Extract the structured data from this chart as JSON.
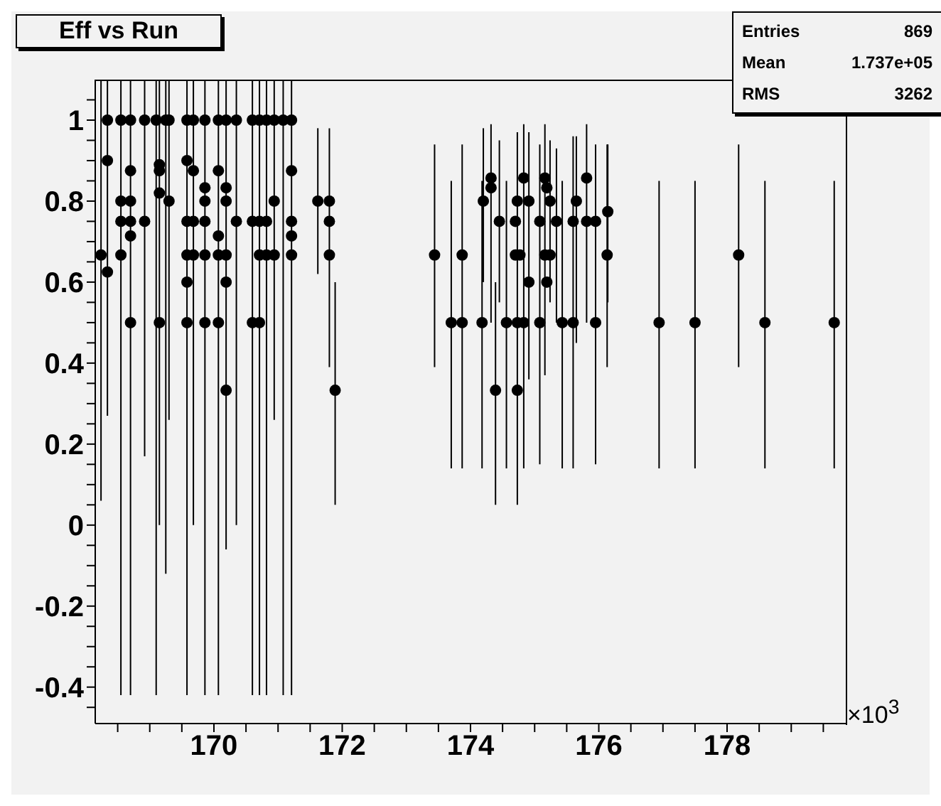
{
  "chart_data": {
    "type": "scatter",
    "title": "Eff vs Run",
    "marker": "circle",
    "legend": false,
    "grid": false,
    "annotations": [
      "Entries",
      "869",
      "Mean",
      "1.737e+05",
      "RMS",
      "3262",
      "×10$^{3}$"
    ],
    "xlim": [
      168.15,
      179.85
    ],
    "xticks": [
      {
        "value": 168.5,
        "label": null
      },
      {
        "value": 169,
        "label": null
      },
      {
        "value": 169.5,
        "label": null
      },
      170,
      {
        "value": 170.5,
        "label": null
      },
      {
        "value": 171,
        "label": null
      },
      {
        "value": 171.5,
        "label": null
      },
      172,
      {
        "value": 172.5,
        "label": null
      },
      {
        "value": 173,
        "label": null
      },
      {
        "value": 173.5,
        "label": null
      },
      174,
      {
        "value": 174.5,
        "label": null
      },
      {
        "value": 175,
        "label": null
      },
      {
        "value": 175.5,
        "label": null
      },
      176,
      {
        "value": 176.5,
        "label": null
      },
      {
        "value": 177,
        "label": null
      },
      {
        "value": 177.5,
        "label": null
      },
      178,
      {
        "value": 178.5,
        "label": null
      },
      {
        "value": 179,
        "label": null
      },
      {
        "value": 179.5,
        "label": null
      }
    ],
    "ylim": [
      -0.49,
      1.1
    ],
    "yticks": [
      {
        "value": -0.45,
        "label": null
      },
      -0.4,
      {
        "value": -0.35,
        "label": null
      },
      {
        "value": -0.3,
        "label": null
      },
      {
        "value": -0.25,
        "label": null
      },
      -0.2,
      {
        "value": -0.15,
        "label": null
      },
      {
        "value": -0.1,
        "label": null
      },
      {
        "value": -0.05,
        "label": null
      },
      0,
      {
        "value": 0.05,
        "label": null
      },
      {
        "value": 0.1,
        "label": null
      },
      {
        "value": 0.15,
        "label": null
      },
      0.2,
      {
        "value": 0.25,
        "label": null
      },
      {
        "value": 0.3,
        "label": null
      },
      {
        "value": 0.35,
        "label": null
      },
      0.4,
      {
        "value": 0.45,
        "label": null
      },
      {
        "value": 0.5,
        "label": null
      },
      {
        "value": 0.55,
        "label": null
      },
      0.6,
      {
        "value": 0.65,
        "label": null
      },
      {
        "value": 0.7,
        "label": null
      },
      {
        "value": 0.75,
        "label": null
      },
      0.8,
      {
        "value": 0.85,
        "label": null
      },
      {
        "value": 0.9,
        "label": null
      },
      {
        "value": 0.95,
        "label": null
      },
      1,
      {
        "value": 1.05,
        "label": null
      }
    ],
    "series": [
      {
        "color": "#000000",
        "x": [
          168.24,
          168.34,
          168.34,
          168.34,
          168.55,
          168.55,
          168.55,
          168.55,
          168.7,
          168.7,
          168.7,
          168.7,
          168.7,
          168.7,
          168.92,
          168.92,
          169.1,
          169.15,
          169.15,
          169.15,
          169.15,
          169.25,
          169.3,
          169.3,
          169.58,
          169.58,
          169.58,
          169.58,
          169.58,
          169.58,
          169.68,
          169.68,
          169.68,
          169.68,
          169.86,
          169.86,
          169.86,
          169.86,
          169.86,
          169.86,
          170.07,
          170.07,
          170.07,
          170.07,
          170.07,
          170.19,
          170.19,
          170.19,
          170.19,
          170.19,
          170.19,
          170.35,
          170.35,
          170.6,
          170.6,
          170.6,
          170.71,
          170.71,
          170.71,
          170.71,
          170.82,
          170.82,
          170.82,
          170.94,
          170.94,
          170.94,
          171.08,
          171.21,
          171.21,
          171.21,
          171.21,
          171.21,
          171.62,
          171.8,
          171.8,
          171.8,
          171.89,
          173.44,
          173.7,
          173.87,
          173.87,
          174.18,
          174.2,
          174.32,
          174.32,
          174.39,
          174.45,
          174.56,
          174.7,
          174.7,
          174.73,
          174.73,
          174.73,
          174.77,
          174.83,
          174.83,
          174.91,
          174.91,
          175.08,
          175.08,
          175.16,
          175.16,
          175.19,
          175.19,
          175.24,
          175.24,
          175.34,
          175.43,
          175.6,
          175.6,
          175.65,
          175.81,
          175.81,
          175.95,
          175.95,
          176.13,
          176.14,
          176.94,
          177.5,
          178.18,
          178.59,
          179.67
        ],
        "values": [
          0.667,
          1,
          0.9,
          0.625,
          1,
          0.8,
          0.75,
          0.667,
          1,
          0.875,
          0.8,
          0.75,
          0.714,
          0.5,
          1,
          0.75,
          1,
          0.89,
          0.875,
          0.82,
          0.5,
          1,
          1,
          0.8,
          1,
          0.9,
          0.75,
          0.667,
          0.6,
          0.5,
          1,
          0.875,
          0.75,
          0.667,
          1,
          0.833,
          0.8,
          0.75,
          0.667,
          0.5,
          1,
          0.875,
          0.714,
          0.667,
          0.5,
          1,
          0.833,
          0.8,
          0.667,
          0.6,
          0.333,
          1,
          0.75,
          1,
          0.75,
          0.5,
          1,
          0.75,
          0.667,
          0.5,
          1,
          0.75,
          0.667,
          1,
          0.8,
          0.667,
          1,
          1,
          0.875,
          0.75,
          0.714,
          0.667,
          0.8,
          0.8,
          0.75,
          0.667,
          0.333,
          0.667,
          0.5,
          0.5,
          0.667,
          0.5,
          0.8,
          0.857,
          0.833,
          0.333,
          0.75,
          0.5,
          0.75,
          0.667,
          0.8,
          0.5,
          0.333,
          0.667,
          0.857,
          0.5,
          0.8,
          0.6,
          0.75,
          0.5,
          0.857,
          0.667,
          0.833,
          0.6,
          0.8,
          0.667,
          0.75,
          0.5,
          0.75,
          0.5,
          0.8,
          0.857,
          0.75,
          0.75,
          0.5,
          0.667,
          0.774,
          0.5,
          0.5,
          0.667,
          0.5,
          0.5
        ],
        "errors": [
          [
            0.06,
            1.1
          ],
          [
            0.27,
            1.1
          ],
          null,
          null,
          [
            -0.42,
            1.1
          ],
          null,
          null,
          null,
          [
            -0.42,
            1.1
          ],
          null,
          null,
          null,
          null,
          null,
          [
            0.17,
            1.1
          ],
          null,
          [
            -0.42,
            1.1
          ],
          [
            0,
            1.1
          ],
          null,
          null,
          null,
          [
            -0.12,
            1.1
          ],
          [
            0.26,
            1.1
          ],
          null,
          [
            -0.42,
            1.1
          ],
          null,
          null,
          null,
          null,
          null,
          [
            0,
            1.1
          ],
          null,
          null,
          null,
          [
            -0.42,
            1.1
          ],
          null,
          null,
          null,
          null,
          null,
          [
            -0.42,
            1.1
          ],
          null,
          null,
          null,
          null,
          [
            -0.06,
            1.1
          ],
          null,
          null,
          null,
          null,
          null,
          [
            0,
            1.1
          ],
          null,
          [
            -0.42,
            1.1
          ],
          null,
          null,
          [
            -0.42,
            1.1
          ],
          null,
          null,
          null,
          [
            -0.42,
            1.1
          ],
          null,
          null,
          [
            0.26,
            1.1
          ],
          null,
          null,
          [
            -0.42,
            1.1
          ],
          [
            -0.42,
            1.1
          ],
          null,
          null,
          null,
          null,
          [
            0.62,
            0.98
          ],
          [
            0.39,
            0.98
          ],
          null,
          null,
          [
            0.05,
            0.6
          ],
          [
            0.39,
            0.94
          ],
          [
            0.14,
            0.85
          ],
          [
            0.14,
            0.94
          ],
          null,
          [
            0.14,
            0.85
          ],
          [
            0.6,
            0.98
          ],
          [
            0.5,
            0.99
          ],
          null,
          [
            0.05,
            0.6
          ],
          [
            0.55,
            0.95
          ],
          [
            0.14,
            0.85
          ],
          null,
          null,
          [
            0.05,
            0.97
          ],
          null,
          null,
          null,
          [
            0.14,
            0.99
          ],
          null,
          [
            0.36,
            0.97
          ],
          null,
          [
            0.15,
            0.94
          ],
          null,
          [
            0.37,
            0.99
          ],
          null,
          null,
          null,
          [
            0.55,
            0.95
          ],
          null,
          [
            0.5,
            0.93
          ],
          [
            0.14,
            0.85
          ],
          [
            0.14,
            0.96
          ],
          null,
          [
            0.45,
            0.96
          ],
          [
            0.5,
            0.99
          ],
          null,
          [
            0.15,
            0.94
          ],
          null,
          [
            0.39,
            0.94
          ],
          [
            0.55,
            0.94
          ],
          [
            0.14,
            0.85
          ],
          [
            0.14,
            0.85
          ],
          [
            0.39,
            0.94
          ],
          [
            0.14,
            0.85
          ],
          [
            0.14,
            0.85
          ]
        ]
      }
    ]
  }
}
